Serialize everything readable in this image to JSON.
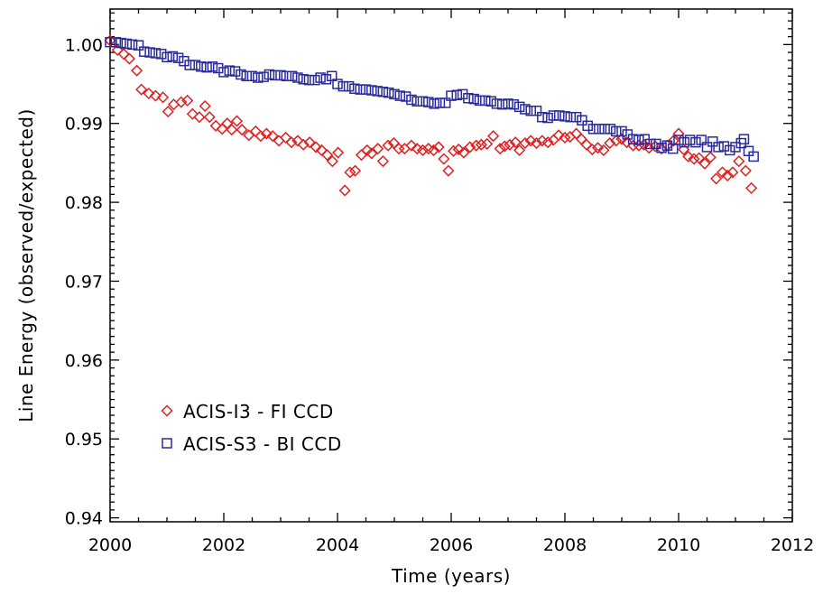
{
  "chart_data": {
    "type": "scatter",
    "xlabel": "Time (years)",
    "ylabel": "Line Energy (observed/expected)",
    "xlim": [
      2000,
      2012
    ],
    "ylim": [
      0.9395,
      1.0045
    ],
    "x_ticks": [
      2000,
      2002,
      2004,
      2006,
      2008,
      2010,
      2012
    ],
    "x_tick_labels": [
      "2000",
      "2002",
      "2004",
      "2006",
      "2008",
      "2010",
      "2012"
    ],
    "y_ticks": [
      0.94,
      0.95,
      0.96,
      0.97,
      0.98,
      0.99,
      1.0
    ],
    "y_tick_labels": [
      "0.94",
      "0.95",
      "0.96",
      "0.97",
      "0.98",
      "0.99",
      "1.00"
    ],
    "grid": false,
    "legend_position": "bottom-left",
    "series": [
      {
        "name": "ACIS-I3 - FI CCD",
        "marker": "diamond",
        "color": "#e02020",
        "points": [
          [
            2000.0,
            1.0005
          ],
          [
            2000.13,
            0.9993
          ],
          [
            2000.24,
            0.9988
          ],
          [
            2000.34,
            0.9982
          ],
          [
            2000.47,
            0.9967
          ],
          [
            2000.55,
            0.9943
          ],
          [
            2000.68,
            0.9938
          ],
          [
            2000.8,
            0.9935
          ],
          [
            2000.93,
            0.9933
          ],
          [
            2001.02,
            0.9915
          ],
          [
            2001.12,
            0.9924
          ],
          [
            2001.25,
            0.9927
          ],
          [
            2001.36,
            0.9929
          ],
          [
            2001.45,
            0.9912
          ],
          [
            2001.57,
            0.9908
          ],
          [
            2001.67,
            0.9922
          ],
          [
            2001.75,
            0.9908
          ],
          [
            2001.86,
            0.9897
          ],
          [
            2001.97,
            0.9893
          ],
          [
            2002.06,
            0.99
          ],
          [
            2002.14,
            0.9892
          ],
          [
            2002.23,
            0.9903
          ],
          [
            2002.32,
            0.9892
          ],
          [
            2002.44,
            0.9885
          ],
          [
            2002.56,
            0.989
          ],
          [
            2002.65,
            0.9884
          ],
          [
            2002.75,
            0.9887
          ],
          [
            2002.86,
            0.9884
          ],
          [
            2002.97,
            0.9878
          ],
          [
            2003.09,
            0.9882
          ],
          [
            2003.19,
            0.9876
          ],
          [
            2003.3,
            0.9878
          ],
          [
            2003.4,
            0.9873
          ],
          [
            2003.51,
            0.9876
          ],
          [
            2003.62,
            0.987
          ],
          [
            2003.72,
            0.9866
          ],
          [
            2003.82,
            0.986
          ],
          [
            2003.91,
            0.9852
          ],
          [
            2004.01,
            0.9863
          ],
          [
            2004.13,
            0.9815
          ],
          [
            2004.22,
            0.9838
          ],
          [
            2004.31,
            0.984
          ],
          [
            2004.42,
            0.986
          ],
          [
            2004.52,
            0.9866
          ],
          [
            2004.6,
            0.9862
          ],
          [
            2004.71,
            0.9868
          ],
          [
            2004.8,
            0.9852
          ],
          [
            2004.89,
            0.9872
          ],
          [
            2004.99,
            0.9875
          ],
          [
            2005.08,
            0.9868
          ],
          [
            2005.18,
            0.9868
          ],
          [
            2005.3,
            0.9872
          ],
          [
            2005.4,
            0.9868
          ],
          [
            2005.5,
            0.9866
          ],
          [
            2005.6,
            0.9868
          ],
          [
            2005.69,
            0.9866
          ],
          [
            2005.78,
            0.987
          ],
          [
            2005.87,
            0.9855
          ],
          [
            2005.95,
            0.984
          ],
          [
            2006.04,
            0.9865
          ],
          [
            2006.13,
            0.9867
          ],
          [
            2006.22,
            0.9863
          ],
          [
            2006.33,
            0.987
          ],
          [
            2006.44,
            0.9872
          ],
          [
            2006.53,
            0.9873
          ],
          [
            2006.63,
            0.9874
          ],
          [
            2006.74,
            0.9884
          ],
          [
            2006.86,
            0.9868
          ],
          [
            2006.94,
            0.9871
          ],
          [
            2007.03,
            0.9873
          ],
          [
            2007.13,
            0.9876
          ],
          [
            2007.2,
            0.9866
          ],
          [
            2007.3,
            0.9875
          ],
          [
            2007.4,
            0.9878
          ],
          [
            2007.5,
            0.9875
          ],
          [
            2007.6,
            0.9878
          ],
          [
            2007.7,
            0.9876
          ],
          [
            2007.8,
            0.9879
          ],
          [
            2007.89,
            0.9885
          ],
          [
            2008.0,
            0.9882
          ],
          [
            2008.09,
            0.9883
          ],
          [
            2008.2,
            0.9887
          ],
          [
            2008.29,
            0.988
          ],
          [
            2008.38,
            0.9873
          ],
          [
            2008.48,
            0.9867
          ],
          [
            2008.58,
            0.9869
          ],
          [
            2008.68,
            0.9866
          ],
          [
            2008.79,
            0.9875
          ],
          [
            2008.9,
            0.9878
          ],
          [
            2009.0,
            0.988
          ],
          [
            2009.09,
            0.9876
          ],
          [
            2009.2,
            0.9872
          ],
          [
            2009.3,
            0.9872
          ],
          [
            2009.39,
            0.9873
          ],
          [
            2009.48,
            0.9869
          ],
          [
            2009.59,
            0.9871
          ],
          [
            2009.7,
            0.9868
          ],
          [
            2009.8,
            0.9872
          ],
          [
            2009.91,
            0.9878
          ],
          [
            2010.0,
            0.9887
          ],
          [
            2010.09,
            0.9867
          ],
          [
            2010.17,
            0.9858
          ],
          [
            2010.27,
            0.9855
          ],
          [
            2010.36,
            0.9856
          ],
          [
            2010.46,
            0.9849
          ],
          [
            2010.56,
            0.9857
          ],
          [
            2010.66,
            0.983
          ],
          [
            2010.77,
            0.9838
          ],
          [
            2010.86,
            0.9834
          ],
          [
            2010.95,
            0.9838
          ],
          [
            2011.06,
            0.9852
          ],
          [
            2011.18,
            0.984
          ],
          [
            2011.28,
            0.9818
          ]
        ]
      },
      {
        "name": "ACIS-S3 - BI CCD",
        "marker": "square",
        "color": "#2a2a9e",
        "points": [
          [
            2000.0,
            1.0003
          ],
          [
            2000.1,
            1.0003
          ],
          [
            2000.19,
            1.0002
          ],
          [
            2000.29,
            1.0001
          ],
          [
            2000.39,
            1.0
          ],
          [
            2000.5,
            0.9999
          ],
          [
            2000.6,
            0.9991
          ],
          [
            2000.7,
            0.999
          ],
          [
            2000.8,
            0.9989
          ],
          [
            2000.9,
            0.9988
          ],
          [
            2001.0,
            0.9984
          ],
          [
            2001.1,
            0.9985
          ],
          [
            2001.2,
            0.9983
          ],
          [
            2001.3,
            0.9979
          ],
          [
            2001.4,
            0.9974
          ],
          [
            2001.5,
            0.9974
          ],
          [
            2001.6,
            0.9972
          ],
          [
            2001.7,
            0.9971
          ],
          [
            2001.8,
            0.9972
          ],
          [
            2001.9,
            0.997
          ],
          [
            2002.0,
            0.9965
          ],
          [
            2002.1,
            0.9967
          ],
          [
            2002.2,
            0.9966
          ],
          [
            2002.3,
            0.9962
          ],
          [
            2002.4,
            0.996
          ],
          [
            2002.5,
            0.996
          ],
          [
            2002.6,
            0.9958
          ],
          [
            2002.7,
            0.9959
          ],
          [
            2002.8,
            0.9962
          ],
          [
            2002.9,
            0.9961
          ],
          [
            2003.0,
            0.9961
          ],
          [
            2003.1,
            0.996
          ],
          [
            2003.2,
            0.996
          ],
          [
            2003.3,
            0.9958
          ],
          [
            2003.4,
            0.9956
          ],
          [
            2003.5,
            0.9955
          ],
          [
            2003.6,
            0.9955
          ],
          [
            2003.7,
            0.9958
          ],
          [
            2003.8,
            0.9956
          ],
          [
            2003.9,
            0.996
          ],
          [
            2004.0,
            0.995
          ],
          [
            2004.1,
            0.9947
          ],
          [
            2004.2,
            0.9947
          ],
          [
            2004.3,
            0.9944
          ],
          [
            2004.4,
            0.9943
          ],
          [
            2004.5,
            0.9943
          ],
          [
            2004.6,
            0.9942
          ],
          [
            2004.7,
            0.9941
          ],
          [
            2004.8,
            0.994
          ],
          [
            2004.9,
            0.9939
          ],
          [
            2005.0,
            0.9937
          ],
          [
            2005.1,
            0.9935
          ],
          [
            2005.2,
            0.9934
          ],
          [
            2005.3,
            0.993
          ],
          [
            2005.4,
            0.9928
          ],
          [
            2005.5,
            0.9928
          ],
          [
            2005.6,
            0.9927
          ],
          [
            2005.7,
            0.9925
          ],
          [
            2005.8,
            0.9926
          ],
          [
            2005.9,
            0.9926
          ],
          [
            2006.0,
            0.9935
          ],
          [
            2006.1,
            0.9936
          ],
          [
            2006.2,
            0.9937
          ],
          [
            2006.3,
            0.9932
          ],
          [
            2006.4,
            0.9931
          ],
          [
            2006.5,
            0.9929
          ],
          [
            2006.6,
            0.9929
          ],
          [
            2006.7,
            0.9928
          ],
          [
            2006.8,
            0.9925
          ],
          [
            2006.9,
            0.9924
          ],
          [
            2007.0,
            0.9925
          ],
          [
            2007.1,
            0.9924
          ],
          [
            2007.2,
            0.9921
          ],
          [
            2007.3,
            0.9918
          ],
          [
            2007.4,
            0.9916
          ],
          [
            2007.5,
            0.9916
          ],
          [
            2007.6,
            0.9908
          ],
          [
            2007.7,
            0.9907
          ],
          [
            2007.8,
            0.991
          ],
          [
            2007.9,
            0.991
          ],
          [
            2008.0,
            0.9909
          ],
          [
            2008.1,
            0.9908
          ],
          [
            2008.2,
            0.9908
          ],
          [
            2008.3,
            0.9904
          ],
          [
            2008.4,
            0.9897
          ],
          [
            2008.5,
            0.9893
          ],
          [
            2008.6,
            0.9893
          ],
          [
            2008.7,
            0.9893
          ],
          [
            2008.8,
            0.9893
          ],
          [
            2008.9,
            0.989
          ],
          [
            2009.0,
            0.989
          ],
          [
            2009.1,
            0.9886
          ],
          [
            2009.2,
            0.988
          ],
          [
            2009.3,
            0.9879
          ],
          [
            2009.4,
            0.988
          ],
          [
            2009.5,
            0.9874
          ],
          [
            2009.6,
            0.9874
          ],
          [
            2009.7,
            0.9869
          ],
          [
            2009.8,
            0.9872
          ],
          [
            2009.9,
            0.9868
          ],
          [
            2010.0,
            0.9879
          ],
          [
            2010.1,
            0.9876
          ],
          [
            2010.2,
            0.9879
          ],
          [
            2010.3,
            0.9876
          ],
          [
            2010.4,
            0.9879
          ],
          [
            2010.5,
            0.987
          ],
          [
            2010.6,
            0.9877
          ],
          [
            2010.7,
            0.987
          ],
          [
            2010.8,
            0.9871
          ],
          [
            2010.9,
            0.9866
          ],
          [
            2011.0,
            0.987
          ],
          [
            2011.1,
            0.9875
          ],
          [
            2011.15,
            0.988
          ],
          [
            2011.23,
            0.9865
          ],
          [
            2011.32,
            0.9858
          ]
        ]
      }
    ]
  }
}
